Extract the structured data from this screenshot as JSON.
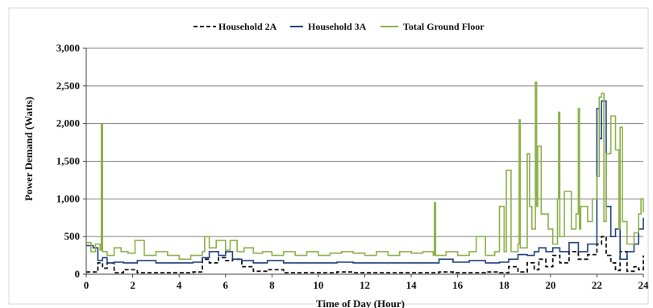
{
  "chart_data": {
    "type": "line",
    "title": "",
    "xlabel": "Time of Day (Hour)",
    "ylabel": "Power Demand (Watts)",
    "xlim": [
      0,
      24
    ],
    "ylim": [
      0,
      3000
    ],
    "grid": true,
    "legend_position": "top-center",
    "x_ticks": [
      "0",
      "2",
      "4",
      "6",
      "8",
      "10",
      "12",
      "14",
      "16",
      "18",
      "20",
      "22",
      "24"
    ],
    "y_ticks": [
      "0",
      "500",
      "1,000",
      "1,500",
      "2,000",
      "2,500",
      "3,000"
    ],
    "series": [
      {
        "name": "Household 2A",
        "color": "#111111",
        "style": "dashed",
        "x": [
          0,
          0.3,
          0.5,
          0.7,
          0.9,
          1.2,
          1.6,
          2.2,
          3,
          4,
          4.6,
          5,
          5.3,
          5.7,
          6,
          6.3,
          6.7,
          7.2,
          7.8,
          8.5,
          9.2,
          10,
          10.8,
          11.5,
          12.3,
          13,
          13.8,
          14.6,
          15.2,
          15.8,
          16.5,
          17.2,
          17.8,
          18.2,
          18.6,
          19,
          19.3,
          19.5,
          19.8,
          20.1,
          20.4,
          20.8,
          21.2,
          21.6,
          22,
          22.2,
          22.4,
          22.6,
          22.8,
          23,
          23.3,
          23.6,
          23.8,
          24
        ],
        "y": [
          30,
          30,
          150,
          80,
          150,
          20,
          60,
          20,
          20,
          20,
          30,
          200,
          150,
          220,
          180,
          200,
          100,
          40,
          60,
          20,
          20,
          20,
          30,
          20,
          20,
          20,
          20,
          20,
          30,
          20,
          20,
          30,
          20,
          100,
          30,
          150,
          60,
          200,
          100,
          250,
          150,
          300,
          200,
          260,
          400,
          500,
          250,
          150,
          50,
          300,
          40,
          100,
          60,
          250
        ]
      },
      {
        "name": "Household 3A",
        "color": "#1f3f7a",
        "style": "solid",
        "x": [
          0,
          0.3,
          0.5,
          0.7,
          0.9,
          1.2,
          1.6,
          2.2,
          3,
          4,
          4.6,
          5,
          5.3,
          5.7,
          6,
          6.3,
          6.7,
          7.2,
          7.8,
          8.5,
          9.2,
          10,
          10.8,
          11.5,
          12.3,
          13,
          13.8,
          14.6,
          15.2,
          15.8,
          16.5,
          17.2,
          17.8,
          18.2,
          18.6,
          19,
          19.3,
          19.5,
          19.8,
          20.1,
          20.4,
          20.8,
          21.2,
          21.6,
          22,
          22.1,
          22.2,
          22.4,
          22.6,
          22.8,
          23,
          23.3,
          23.6,
          23.8,
          24
        ],
        "y": [
          380,
          350,
          180,
          220,
          150,
          160,
          150,
          180,
          150,
          150,
          160,
          220,
          300,
          250,
          300,
          200,
          180,
          150,
          180,
          150,
          150,
          150,
          160,
          150,
          150,
          150,
          150,
          150,
          200,
          160,
          180,
          150,
          160,
          200,
          260,
          250,
          300,
          350,
          300,
          350,
          300,
          420,
          300,
          400,
          2200,
          1800,
          2300,
          900,
          500,
          600,
          200,
          300,
          400,
          600,
          750
        ]
      },
      {
        "name": "Total Ground Floor",
        "color": "#8db04a",
        "style": "solid",
        "x": [
          0,
          0.2,
          0.4,
          0.6,
          0.65,
          0.7,
          0.9,
          1.2,
          1.5,
          1.8,
          2.1,
          2.5,
          3,
          3.5,
          4,
          4.5,
          5,
          5.1,
          5.3,
          5.6,
          6,
          6.2,
          6.5,
          6.8,
          7.2,
          7.6,
          8,
          8.5,
          9,
          9.5,
          10,
          10.5,
          11,
          11.5,
          12,
          12.5,
          13,
          13.5,
          14,
          14.5,
          14.95,
          15.0,
          15.05,
          15.5,
          16,
          16.5,
          16.8,
          17.2,
          17.6,
          17.8,
          18.0,
          18.1,
          18.3,
          18.6,
          18.65,
          18.7,
          19,
          19.1,
          19.2,
          19.35,
          19.4,
          19.45,
          19.6,
          19.9,
          20.1,
          20.3,
          20.35,
          20.4,
          20.6,
          20.9,
          21.1,
          21.2,
          21.25,
          21.3,
          21.6,
          21.8,
          22.0,
          22.1,
          22.2,
          22.3,
          22.4,
          22.6,
          22.8,
          22.95,
          23.0,
          23.1,
          23.3,
          23.6,
          23.8,
          23.9,
          24
        ],
        "y": [
          420,
          300,
          400,
          320,
          2000,
          300,
          250,
          350,
          300,
          280,
          450,
          250,
          300,
          250,
          200,
          250,
          300,
          500,
          350,
          450,
          320,
          450,
          300,
          350,
          280,
          300,
          250,
          300,
          250,
          300,
          250,
          280,
          300,
          280,
          250,
          300,
          250,
          300,
          280,
          300,
          250,
          950,
          250,
          300,
          250,
          300,
          500,
          250,
          300,
          900,
          300,
          1380,
          300,
          400,
          2050,
          350,
          1600,
          900,
          600,
          2550,
          900,
          1700,
          800,
          600,
          400,
          1000,
          2150,
          500,
          1100,
          600,
          800,
          2200,
          600,
          900,
          700,
          1000,
          1300,
          2350,
          2400,
          700,
          1600,
          2100,
          1650,
          600,
          1950,
          700,
          400,
          550,
          800,
          1000,
          820
        ]
      }
    ]
  }
}
